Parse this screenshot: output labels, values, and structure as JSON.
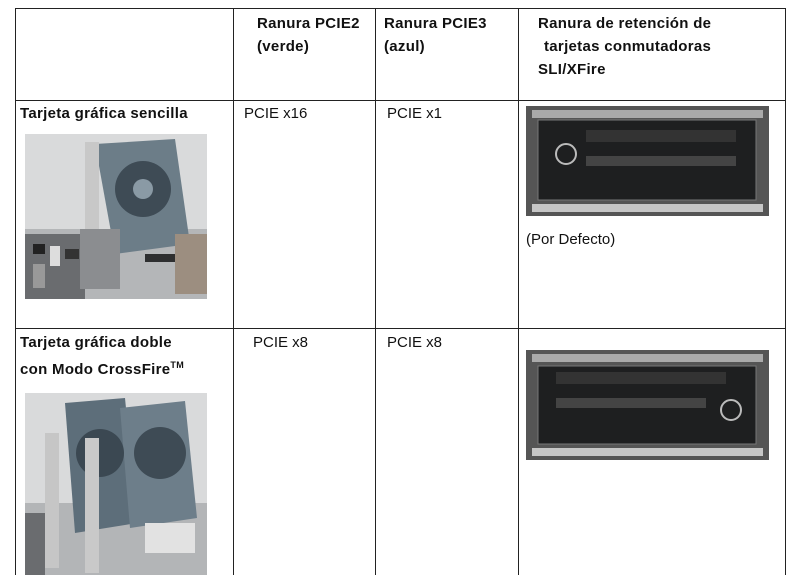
{
  "table": {
    "header": [
      [
        "Ranura PCIE2",
        "(verde)"
      ],
      [
        "Ranura PCIE3",
        "(azul)"
      ],
      [
        "Ranura de retención de",
        "tarjetas conmutadoras",
        "SLI/XFire"
      ]
    ],
    "rows": [
      {
        "label": [
          "Tarjeta gráfica sencilla"
        ],
        "pcie2": "PCIE x16",
        "pcie3": "PCIE x1",
        "note": "(Por Defecto)"
      },
      {
        "label": [
          "Tarjeta gráfica doble",
          "con Modo CrossFire"
        ],
        "trademark": "TM",
        "pcie2": "PCIE x8",
        "pcie3": "PCIE x8"
      }
    ]
  }
}
